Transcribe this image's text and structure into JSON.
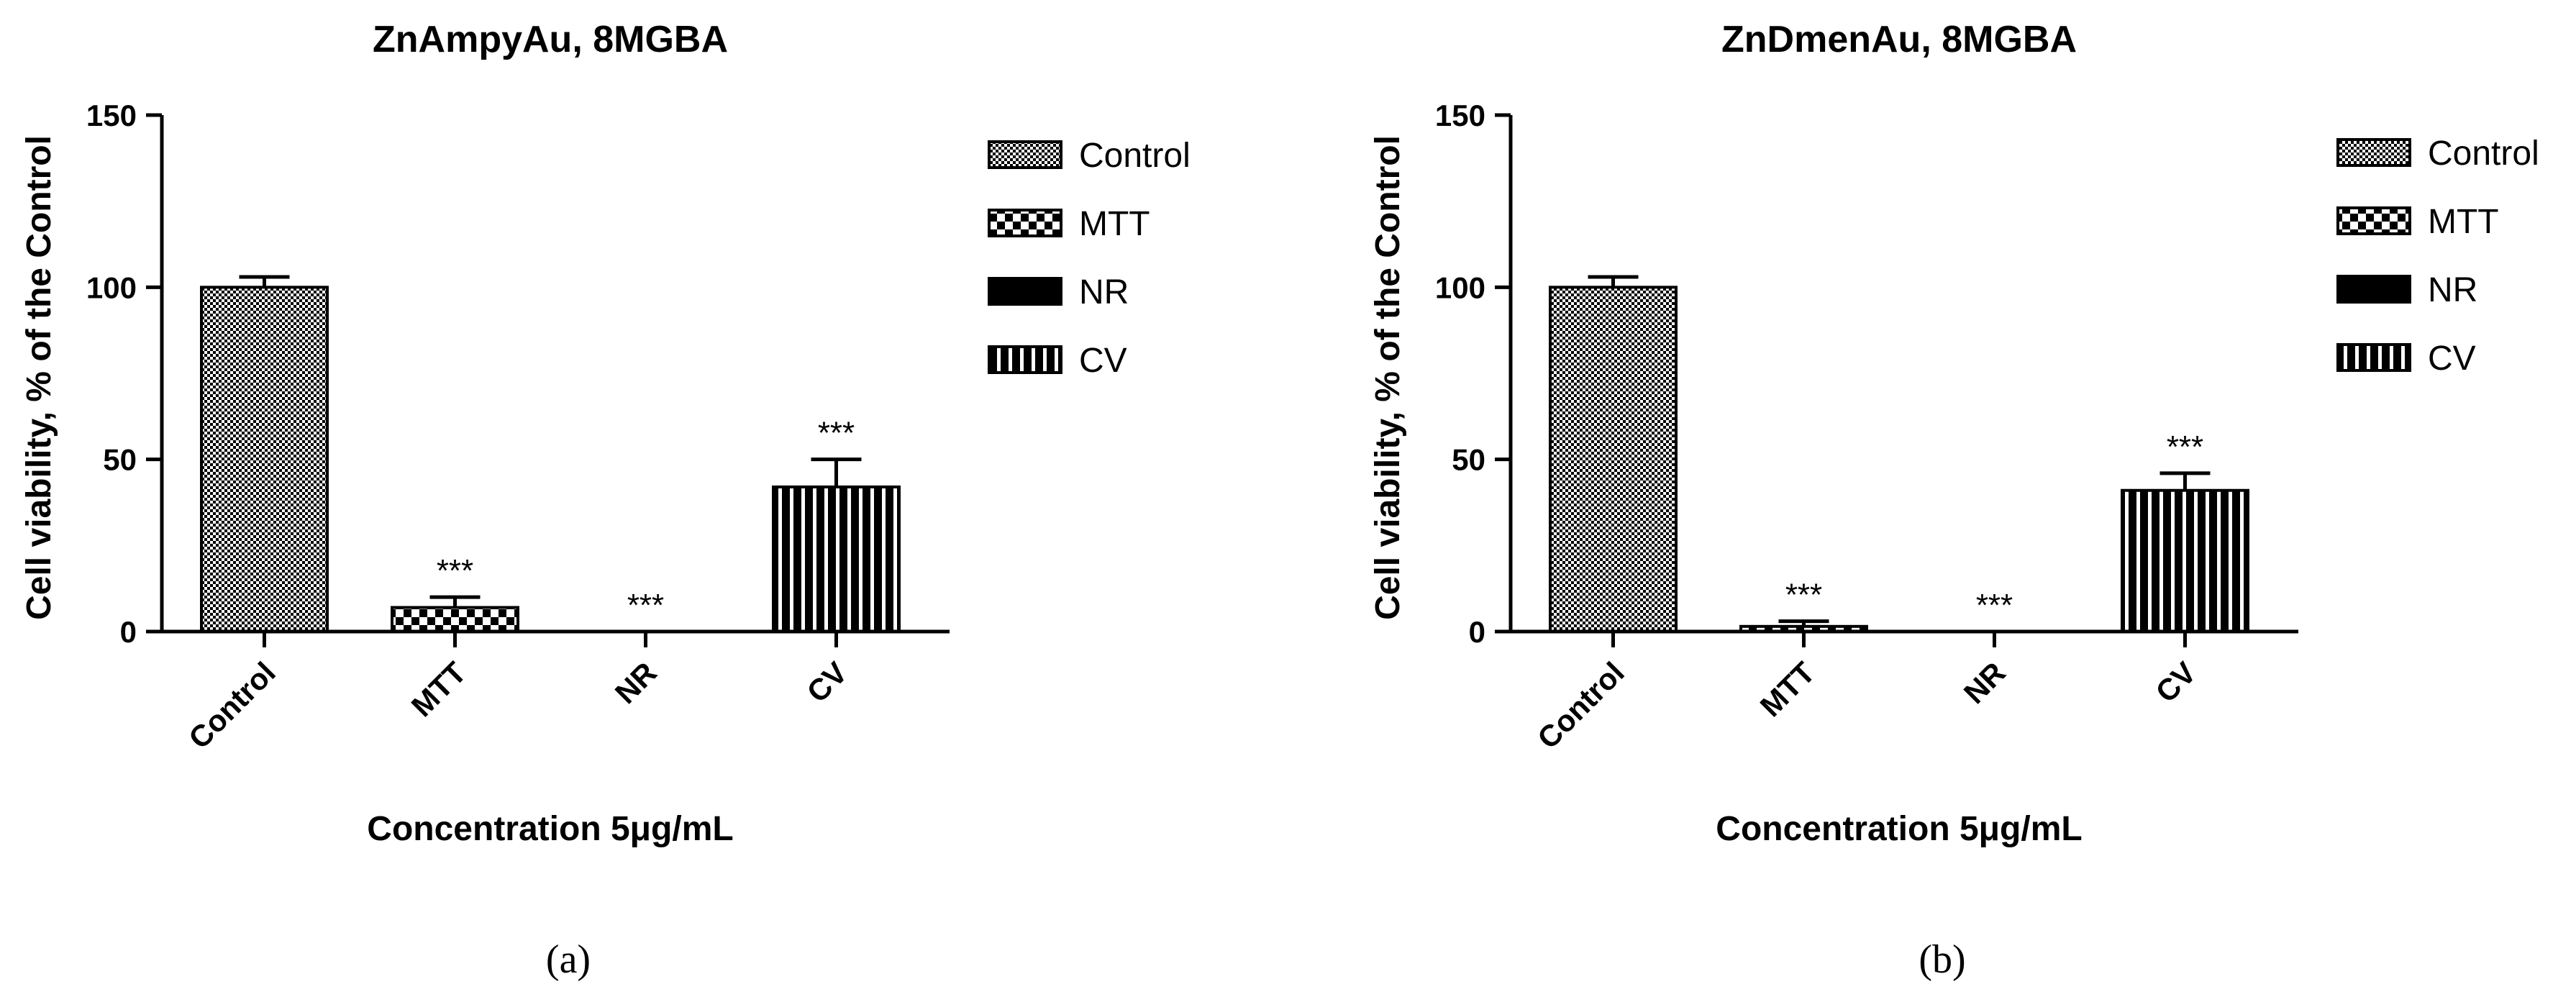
{
  "panels": [
    {
      "label": "(a)",
      "chart_data": {
        "type": "bar",
        "title": "ZnAmpyAu, 8MGBA",
        "xlabel": "Concentration 5μg/mL",
        "ylabel": "Cell viability, % of the Control",
        "categories": [
          "Control",
          "MTT",
          "NR",
          "CV"
        ],
        "values": [
          100,
          7,
          0,
          42
        ],
        "errors": [
          3,
          3,
          0,
          8
        ],
        "annotations": [
          "",
          "***",
          "***",
          "***"
        ],
        "ylim": [
          0,
          150
        ],
        "yticks": [
          "0",
          "50",
          "100",
          "150"
        ],
        "grid": false,
        "legend": {
          "placement": "right",
          "entries": [
            "Control",
            "MTT",
            "NR",
            "CV"
          ]
        }
      }
    },
    {
      "label": "(b)",
      "chart_data": {
        "type": "bar",
        "title": "ZnDmenAu, 8MGBA",
        "xlabel": "Concentration 5μg/mL",
        "ylabel": "Cell viability, % of the Control",
        "categories": [
          "Control",
          "MTT",
          "NR",
          "CV"
        ],
        "values": [
          100,
          1.5,
          0,
          41
        ],
        "errors": [
          3,
          1.5,
          0,
          5
        ],
        "annotations": [
          "",
          "***",
          "***",
          "***"
        ],
        "ylim": [
          0,
          150
        ],
        "yticks": [
          "0",
          "50",
          "100",
          "150"
        ],
        "grid": false,
        "legend": {
          "placement": "right",
          "entries": [
            "Control",
            "MTT",
            "NR",
            "CV"
          ]
        }
      }
    }
  ]
}
